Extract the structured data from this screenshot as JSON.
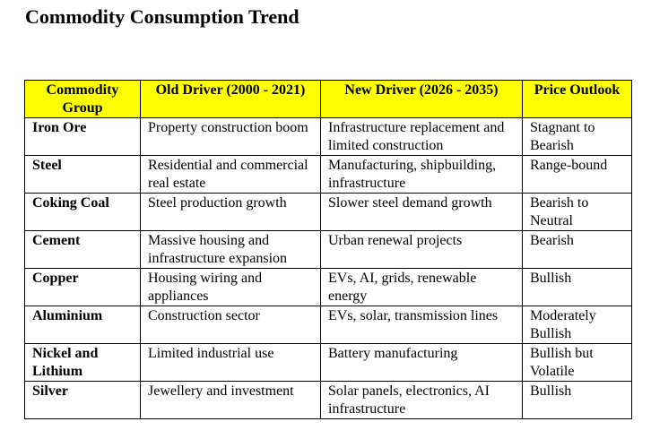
{
  "document": {
    "title": "Commodity Consumption Trend"
  },
  "table": {
    "headers": [
      "Commodity Group",
      "Old Driver (2000 - 2021)",
      "New Driver (2026 - 2035)",
      "Price Outlook"
    ],
    "rows": [
      {
        "commodity": "Iron Ore",
        "old_driver": "Property construction boom",
        "new_driver": "Infrastructure replacement and limited construction",
        "outlook": "Stagnant to Bearish"
      },
      {
        "commodity": "Steel",
        "old_driver": "Residential and commercial real estate",
        "new_driver": "Manufacturing, shipbuilding, infrastructure",
        "outlook": "Range-bound"
      },
      {
        "commodity": "Coking Coal",
        "old_driver": "Steel production growth",
        "new_driver": "Slower steel demand growth",
        "outlook": "Bearish to Neutral"
      },
      {
        "commodity": "Cement",
        "old_driver": "Massive housing and infrastructure expansion",
        "new_driver": "Urban renewal projects",
        "outlook": "Bearish"
      },
      {
        "commodity": "Copper",
        "old_driver": "Housing wiring and appliances",
        "new_driver": "EVs, AI, grids, renewable energy",
        "outlook": "Bullish"
      },
      {
        "commodity": "Aluminium",
        "old_driver": "Construction sector",
        "new_driver": "EVs, solar, transmission lines",
        "outlook": "Moderately Bullish"
      },
      {
        "commodity": "Nickel and Lithium",
        "old_driver": "Limited industrial use",
        "new_driver": "Battery manufacturing",
        "outlook": "Bullish but Volatile"
      },
      {
        "commodity": "Silver",
        "old_driver": "Jewellery and investment",
        "new_driver": "Solar panels, electronics, AI infrastructure",
        "outlook": "Bullish"
      }
    ]
  }
}
